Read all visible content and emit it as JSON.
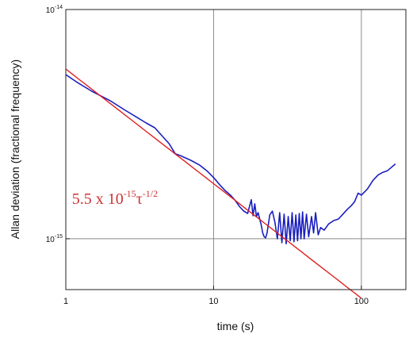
{
  "chart_data": {
    "type": "line",
    "xscale": "log",
    "yscale": "log",
    "xlim": [
      1,
      200
    ],
    "ylim": [
      6e-16,
      1e-14
    ],
    "grid": true,
    "xlabel": "time (s)",
    "ylabel": "Allan deviation (fractional frequency)",
    "x_ticks": [
      {
        "value": 1,
        "label": "1"
      },
      {
        "value": 10,
        "label": "10"
      },
      {
        "value": 100,
        "label": "100"
      }
    ],
    "y_ticks": [
      {
        "value": 1e-15,
        "label_base": "10",
        "label_exp": "-15"
      },
      {
        "value": 1e-14,
        "label_base": "10",
        "label_exp": "-14"
      }
    ],
    "annotation": {
      "prefix": "5.5 x 10",
      "exp1": "-15",
      "tau": "τ",
      "exp2": "-1/2",
      "color": "#cc3333",
      "anchor_x": 1.1,
      "anchor_y": 1.42e-15
    },
    "series": [
      {
        "kind": "measured",
        "color": "#1a1fbf",
        "points": [
          [
            1,
            5.2e-15
          ],
          [
            1.2,
            4.8e-15
          ],
          [
            1.5,
            4.4e-15
          ],
          [
            2,
            4e-15
          ],
          [
            2.5,
            3.65e-15
          ],
          [
            3,
            3.4e-15
          ],
          [
            3.5,
            3.2e-15
          ],
          [
            4,
            3.05e-15
          ],
          [
            5,
            2.6e-15
          ],
          [
            5.5,
            2.35e-15
          ],
          [
            6,
            2.3e-15
          ],
          [
            7,
            2.2e-15
          ],
          [
            8,
            2.1e-15
          ],
          [
            9,
            1.98e-15
          ],
          [
            10,
            1.85e-15
          ],
          [
            11,
            1.72e-15
          ],
          [
            12,
            1.62e-15
          ],
          [
            13,
            1.55e-15
          ],
          [
            14,
            1.47e-15
          ],
          [
            15,
            1.38e-15
          ],
          [
            16,
            1.32e-15
          ],
          [
            17,
            1.29e-15
          ],
          [
            18,
            1.48e-15
          ],
          [
            18.5,
            1.26e-15
          ],
          [
            19,
            1.42e-15
          ],
          [
            19.5,
            1.25e-15
          ],
          [
            20,
            1.3e-15
          ],
          [
            20.5,
            1.22e-15
          ],
          [
            21,
            1.15e-15
          ],
          [
            21.5,
            1.06e-15
          ],
          [
            22,
            1.02e-15
          ],
          [
            22.5,
            1.01e-15
          ],
          [
            23,
            1.06e-15
          ],
          [
            24,
            1.27e-15
          ],
          [
            25,
            1.32e-15
          ],
          [
            26,
            1.18e-15
          ],
          [
            27,
            1e-15
          ],
          [
            28,
            1.3e-15
          ],
          [
            29,
            9.6e-16
          ],
          [
            30,
            1.28e-15
          ],
          [
            31,
            9.5e-16
          ],
          [
            32,
            1.25e-15
          ],
          [
            33,
            9.8e-16
          ],
          [
            34,
            1.3e-15
          ],
          [
            35,
            9.7e-16
          ],
          [
            36,
            1.27e-15
          ],
          [
            37,
            9.8e-16
          ],
          [
            38,
            1.29e-15
          ],
          [
            39,
            1e-15
          ],
          [
            40,
            1.31e-15
          ],
          [
            41,
            1e-15
          ],
          [
            42.5,
            1.28e-15
          ],
          [
            44,
            1.02e-15
          ],
          [
            46,
            1.25e-15
          ],
          [
            47.5,
            1.06e-15
          ],
          [
            49,
            1.3e-15
          ],
          [
            51,
            1.04e-15
          ],
          [
            53,
            1.12e-15
          ],
          [
            56,
            1.09e-15
          ],
          [
            60,
            1.16e-15
          ],
          [
            65,
            1.2e-15
          ],
          [
            70,
            1.22e-15
          ],
          [
            75,
            1.28e-15
          ],
          [
            80,
            1.34e-15
          ],
          [
            85,
            1.39e-15
          ],
          [
            90,
            1.45e-15
          ],
          [
            95,
            1.58e-15
          ],
          [
            100,
            1.55e-15
          ],
          [
            110,
            1.65e-15
          ],
          [
            120,
            1.8e-15
          ],
          [
            130,
            1.9e-15
          ],
          [
            140,
            1.95e-15
          ],
          [
            150,
            1.98e-15
          ],
          [
            160,
            2.05e-15
          ],
          [
            170,
            2.12e-15
          ]
        ]
      },
      {
        "kind": "fit",
        "color": "#dd2020",
        "coefficient": 5.5e-15,
        "exponent": -0.5,
        "x_range": [
          1,
          100
        ]
      }
    ]
  }
}
